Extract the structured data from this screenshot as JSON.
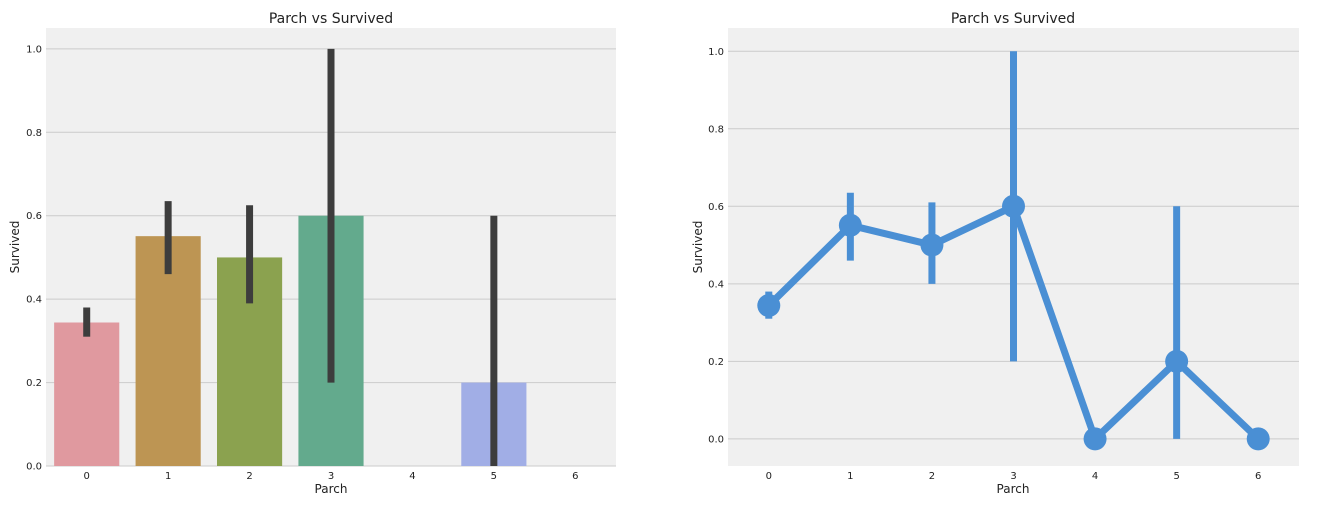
{
  "chart_data": [
    {
      "type": "bar",
      "title": "Parch vs Survived",
      "xlabel": "Parch",
      "ylabel": "Survived",
      "categories": [
        "0",
        "1",
        "2",
        "3",
        "4",
        "5",
        "6"
      ],
      "values": [
        0.344,
        0.551,
        0.5,
        0.6,
        0.0,
        0.2,
        0.0
      ],
      "ci_low": [
        0.31,
        0.46,
        0.39,
        0.2,
        null,
        0.0,
        null
      ],
      "ci_high": [
        0.38,
        0.635,
        0.625,
        1.0,
        null,
        0.6,
        null
      ],
      "bar_colors": [
        "#e0999f",
        "#bd9553",
        "#8ba24f",
        "#63aa8d",
        "#9cb3d6",
        "#a1aee6",
        "#e08fd7"
      ],
      "visible_bars": [
        true,
        true,
        true,
        true,
        false,
        true,
        false
      ],
      "ylim": [
        0,
        1.05
      ],
      "y_ticks": [
        0.0,
        0.2,
        0.4,
        0.6,
        0.8,
        1.0
      ],
      "y_tick_labels": [
        "0.0",
        "0.2",
        "0.4",
        "0.6",
        "0.8",
        "1.0"
      ],
      "grid": true,
      "errorbar_color": "#3d3d3d",
      "background_color": "#f0f0f0"
    },
    {
      "type": "line",
      "title": "Parch vs Survived",
      "xlabel": "Parch",
      "ylabel": "Survived",
      "categories": [
        "0",
        "1",
        "2",
        "3",
        "4",
        "5",
        "6"
      ],
      "values": [
        0.344,
        0.551,
        0.5,
        0.6,
        0.0,
        0.2,
        0.0
      ],
      "ci_low": [
        0.31,
        0.46,
        0.4,
        0.2,
        null,
        0.0,
        null
      ],
      "ci_high": [
        0.38,
        0.635,
        0.61,
        1.0,
        null,
        0.6,
        null
      ],
      "ylim": [
        -0.07,
        1.06
      ],
      "y_ticks": [
        0.0,
        0.2,
        0.4,
        0.6,
        0.8,
        1.0
      ],
      "y_tick_labels": [
        "0.0",
        "0.2",
        "0.4",
        "0.6",
        "0.8",
        "1.0"
      ],
      "grid": true,
      "line_color": "#4a8fd4",
      "background_color": "#f0f0f0"
    }
  ]
}
